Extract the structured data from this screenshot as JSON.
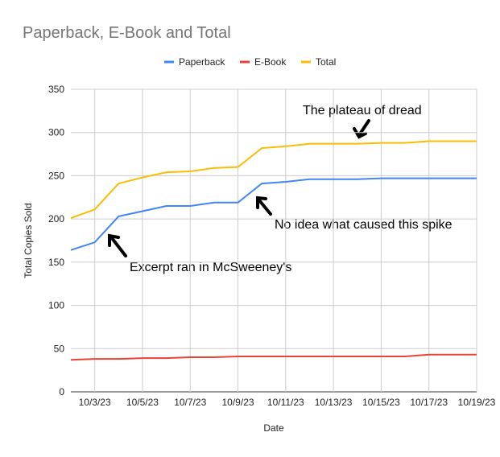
{
  "chart_data": {
    "type": "line",
    "title": "Paperback, E-Book and Total",
    "x_label": "Date",
    "y_label": "Total Copies Sold",
    "categories": [
      null,
      "10/3/23",
      null,
      "10/5/23",
      null,
      "10/7/23",
      null,
      "10/9/23",
      null,
      "10/11/23",
      null,
      "10/13/23",
      null,
      "10/15/23",
      null,
      "10/17/23",
      null,
      "10/19/23"
    ],
    "series": [
      {
        "name": "Paperback",
        "color": "#4285f4",
        "values": [
          164,
          173,
          203,
          209,
          215,
          215,
          219,
          219,
          241,
          243,
          246,
          246,
          246,
          247,
          247,
          247,
          247,
          247
        ]
      },
      {
        "name": "E-Book",
        "color": "#ea4335",
        "values": [
          37,
          38,
          38,
          39,
          39,
          40,
          40,
          41,
          41,
          41,
          41,
          41,
          41,
          41,
          41,
          43,
          43,
          43
        ]
      },
      {
        "name": "Total",
        "color": "#fbbc04",
        "values": [
          201,
          211,
          241,
          248,
          254,
          255,
          259,
          260,
          282,
          284,
          287,
          287,
          287,
          288,
          288,
          290,
          290,
          290
        ]
      }
    ],
    "ylim": [
      0,
      350
    ],
    "yticks": [
      0,
      50,
      100,
      150,
      200,
      250,
      300,
      350
    ],
    "grid": true,
    "legend": "top",
    "annotations": [
      "The plateau of dread",
      "No idea what caused this spike",
      "Excerpt ran in McSweeney's"
    ]
  }
}
